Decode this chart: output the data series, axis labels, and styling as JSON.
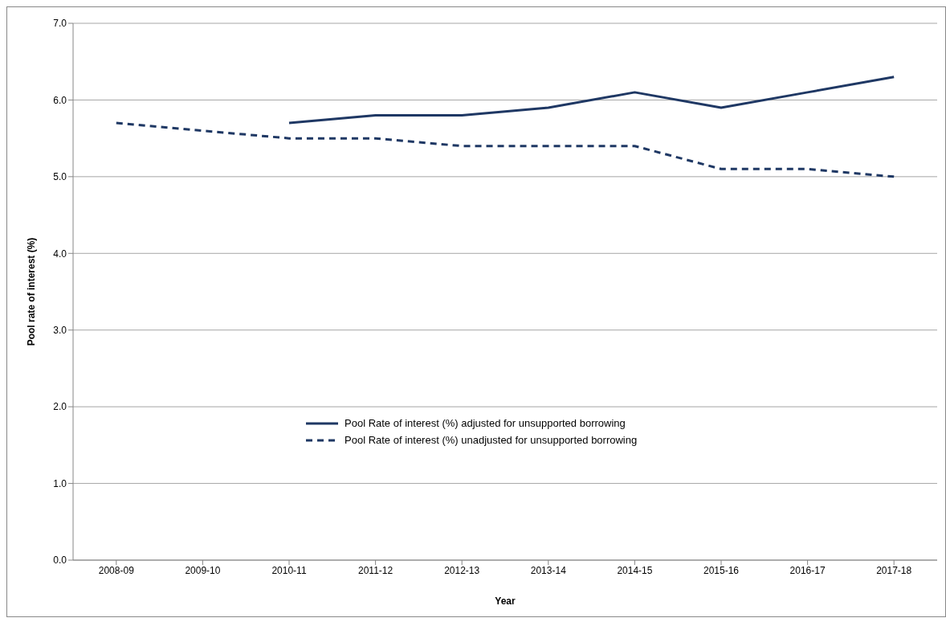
{
  "chart_data": {
    "type": "line",
    "xlabel": "Year",
    "ylabel": "Pool rate of interest (%)",
    "categories": [
      "2008-09",
      "2009-10",
      "2010-11",
      "2011-12",
      "2012-13",
      "2013-14",
      "2014-15",
      "2015-16",
      "2016-17",
      "2017-18"
    ],
    "series": [
      {
        "name": "Pool Rate of interest (%) adjusted for unsupported borrowing",
        "color": "#1f3864",
        "line_style": "solid",
        "values": [
          null,
          null,
          5.7,
          5.8,
          5.8,
          5.9,
          6.1,
          5.9,
          6.1,
          6.3
        ]
      },
      {
        "name": "Pool Rate of interest (%) unadjusted for unsupported borrowing",
        "color": "#1f3864",
        "line_style": "dashed",
        "values": [
          5.7,
          5.6,
          5.5,
          5.5,
          5.4,
          5.4,
          5.4,
          5.1,
          5.1,
          5.0
        ]
      }
    ],
    "ylim": [
      0,
      7
    ],
    "yticks": [
      {
        "value": 0,
        "label": "0.0"
      },
      {
        "value": 1,
        "label": "1.0"
      },
      {
        "value": 2,
        "label": "2.0"
      },
      {
        "value": 3,
        "label": "3.0"
      },
      {
        "value": 4,
        "label": "4.0"
      },
      {
        "value": 5,
        "label": "5.0"
      },
      {
        "value": 6,
        "label": "6.0"
      },
      {
        "value": 7,
        "label": "7.0"
      }
    ],
    "grid": "y",
    "legend": "bottom",
    "marker": "none"
  }
}
